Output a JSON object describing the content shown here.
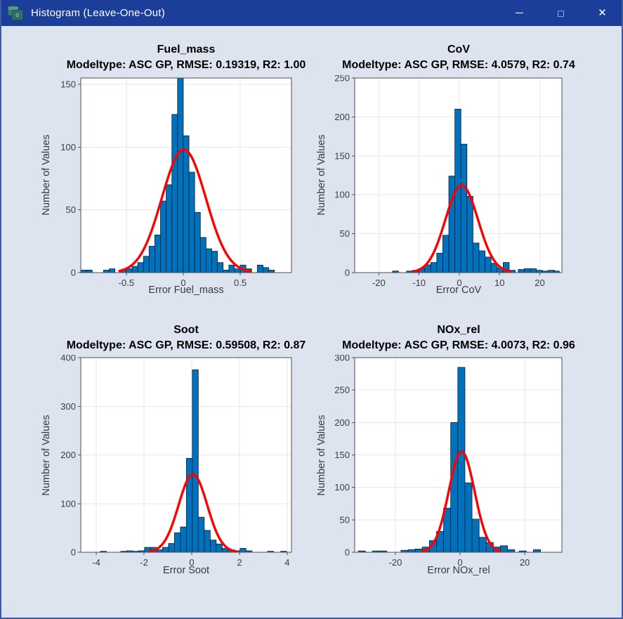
{
  "window": {
    "title": "Histogram (Leave-One-Out)",
    "icon": "app-layers-diamond-icon",
    "controls": {
      "minimize_glyph": "─",
      "maximize_glyph": "□",
      "close_glyph": "✕"
    }
  },
  "colors": {
    "titlebar": "#1a3e99",
    "window_border": "#3c5ba3",
    "figure_bg": "#dde3ef",
    "axes_bg": "#ffffff",
    "grid": "#e7e7e7",
    "axis": "#4f4f4f",
    "tick_text": "#3d3d3d",
    "title_text": "#000000",
    "label_text": "#3a3a3a",
    "bar_fill": "#0072bd",
    "bar_edge": "#0e1e2b",
    "curve": "#ff0000"
  },
  "chart_data": [
    {
      "type": "bar",
      "name": "fuel_mass",
      "title": "Fuel_mass",
      "subtitle": "Modeltype: ASC GP, RMSE: 0.19319, R2: 1.00",
      "xlabel": "Error Fuel_mass",
      "ylabel": "Number of Values",
      "xlim": [
        -0.9,
        0.95
      ],
      "ylim": [
        0,
        155
      ],
      "xticks": [
        -0.5,
        0,
        0.5
      ],
      "yticks": [
        0,
        50,
        100,
        150
      ],
      "grid": true,
      "bin_width": 0.05,
      "bars_format": "[bin_center, count]",
      "bars": [
        [
          -0.875,
          2
        ],
        [
          -0.825,
          2
        ],
        [
          -0.675,
          2
        ],
        [
          -0.625,
          3
        ],
        [
          -0.525,
          2
        ],
        [
          -0.475,
          3
        ],
        [
          -0.425,
          5
        ],
        [
          -0.375,
          8
        ],
        [
          -0.325,
          13
        ],
        [
          -0.275,
          21
        ],
        [
          -0.225,
          30
        ],
        [
          -0.175,
          57
        ],
        [
          -0.125,
          70
        ],
        [
          -0.075,
          126
        ],
        [
          -0.025,
          155
        ],
        [
          0.025,
          109
        ],
        [
          0.075,
          80
        ],
        [
          0.125,
          48
        ],
        [
          0.175,
          28
        ],
        [
          0.225,
          19
        ],
        [
          0.275,
          17
        ],
        [
          0.325,
          8
        ],
        [
          0.375,
          2
        ],
        [
          0.425,
          6
        ],
        [
          0.475,
          3
        ],
        [
          0.525,
          6
        ],
        [
          0.575,
          3
        ],
        [
          0.675,
          6
        ],
        [
          0.725,
          4
        ],
        [
          0.775,
          2
        ]
      ],
      "normal_fit": {
        "mu": 0.005,
        "sigma": 0.193,
        "peak": 98,
        "range": [
          -0.56,
          0.59
        ]
      }
    },
    {
      "type": "bar",
      "name": "cov",
      "title": "CoV",
      "subtitle": "Modeltype: ASC GP, RMSE: 4.0579, R2: 0.74",
      "xlabel": "Error CoV",
      "ylabel": "Number of Values",
      "xlim": [
        -26,
        25.5
      ],
      "ylim": [
        0,
        250
      ],
      "xticks": [
        -20,
        -10,
        0,
        10,
        20
      ],
      "yticks": [
        0,
        50,
        100,
        150,
        200,
        250
      ],
      "grid": true,
      "bin_width": 1.5,
      "bars_format": "[bin_center, count]",
      "bars": [
        [
          -15.85,
          2
        ],
        [
          -12.35,
          2
        ],
        [
          -10.85,
          3
        ],
        [
          -9.35,
          5
        ],
        [
          -7.85,
          10
        ],
        [
          -6.35,
          13
        ],
        [
          -4.85,
          25
        ],
        [
          -3.35,
          48
        ],
        [
          -1.85,
          124
        ],
        [
          -0.35,
          210
        ],
        [
          1.15,
          165
        ],
        [
          2.65,
          98
        ],
        [
          4.15,
          38
        ],
        [
          5.65,
          28
        ],
        [
          7.15,
          20
        ],
        [
          8.65,
          12
        ],
        [
          10.15,
          6
        ],
        [
          11.65,
          13
        ],
        [
          13.15,
          3
        ],
        [
          15.4,
          4
        ],
        [
          16.9,
          5
        ],
        [
          18.4,
          5
        ],
        [
          19.9,
          3
        ],
        [
          21.4,
          2
        ],
        [
          22.9,
          3
        ],
        [
          24.1,
          2
        ]
      ],
      "normal_fit": {
        "mu": 0.6,
        "sigma": 4.06,
        "peak": 112,
        "range": [
          -11.3,
          12.6
        ]
      }
    },
    {
      "type": "bar",
      "name": "soot",
      "title": "Soot",
      "subtitle": "Modeltype: ASC GP, RMSE: 0.59508, R2: 0.87",
      "xlabel": "Error Soot",
      "ylabel": "Number of Values",
      "xlim": [
        -4.65,
        4.18
      ],
      "ylim": [
        0,
        400
      ],
      "xticks": [
        -4,
        -2,
        0,
        2,
        4
      ],
      "yticks": [
        0,
        100,
        200,
        300,
        400
      ],
      "grid": true,
      "bin_width": 0.25,
      "bars_format": "[bin_center, count]",
      "bars": [
        [
          -3.7,
          2
        ],
        [
          -2.85,
          2
        ],
        [
          -2.6,
          3
        ],
        [
          -2.35,
          2
        ],
        [
          -2.1,
          3
        ],
        [
          -1.85,
          10
        ],
        [
          -1.6,
          10
        ],
        [
          -1.35,
          5
        ],
        [
          -1.1,
          10
        ],
        [
          -0.85,
          18
        ],
        [
          -0.6,
          40
        ],
        [
          -0.35,
          52
        ],
        [
          -0.1,
          193
        ],
        [
          0.15,
          375
        ],
        [
          0.4,
          72
        ],
        [
          0.65,
          45
        ],
        [
          0.9,
          25
        ],
        [
          1.15,
          17
        ],
        [
          1.4,
          8
        ],
        [
          1.65,
          5
        ],
        [
          1.9,
          3
        ],
        [
          2.15,
          8
        ],
        [
          2.4,
          3
        ],
        [
          3.3,
          2
        ],
        [
          3.85,
          2
        ],
        [
          4.35,
          2
        ]
      ],
      "normal_fit": {
        "mu": 0.05,
        "sigma": 0.6,
        "peak": 160,
        "range": [
          -1.78,
          1.88
        ]
      }
    },
    {
      "type": "bar",
      "name": "nox_rel",
      "title": "NOx_rel",
      "subtitle": "Modeltype: ASC GP, RMSE: 4.0073, R2: 0.96",
      "xlabel": "Error NOx_rel",
      "ylabel": "Number of Values",
      "xlim": [
        -32.6,
        31.5
      ],
      "ylim": [
        0,
        300
      ],
      "xticks": [
        -20,
        0,
        20
      ],
      "yticks": [
        0,
        50,
        100,
        150,
        200,
        250,
        300
      ],
      "grid": true,
      "bin_width": 2.2,
      "bars_format": "[bin_center, count]",
      "bars": [
        [
          -30.4,
          2
        ],
        [
          -26.0,
          2
        ],
        [
          -23.8,
          2
        ],
        [
          -17.2,
          3
        ],
        [
          -15.0,
          4
        ],
        [
          -12.8,
          5
        ],
        [
          -10.6,
          8
        ],
        [
          -8.4,
          18
        ],
        [
          -6.2,
          32
        ],
        [
          -4.0,
          68
        ],
        [
          -1.8,
          200
        ],
        [
          0.4,
          285
        ],
        [
          2.6,
          107
        ],
        [
          4.8,
          51
        ],
        [
          7.0,
          23
        ],
        [
          9.2,
          15
        ],
        [
          11.4,
          8
        ],
        [
          13.6,
          10
        ],
        [
          15.8,
          4
        ],
        [
          19.4,
          2
        ],
        [
          23.8,
          4
        ]
      ],
      "normal_fit": {
        "mu": 0.5,
        "sigma": 4.0,
        "peak": 155,
        "range": [
          -11.6,
          12.6
        ]
      }
    }
  ]
}
